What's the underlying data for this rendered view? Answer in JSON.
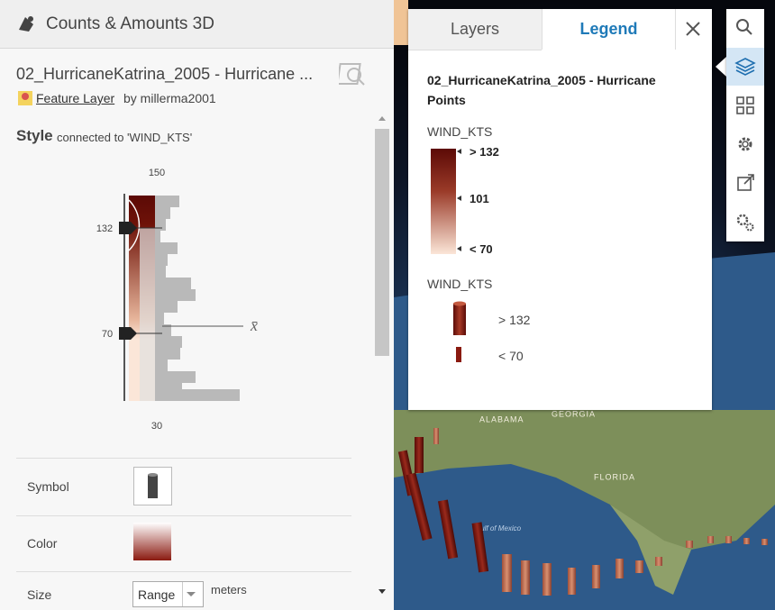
{
  "header": {
    "title": "Counts & Amounts 3D"
  },
  "layer": {
    "name": "02_HurricaneKatrina_2005 - Hurricane ...",
    "type": "Feature Layer",
    "owner": "by millerma2001"
  },
  "style": {
    "label": "Style",
    "field": "connected to 'WIND_KTS'",
    "histogram": {
      "max": "150",
      "upper_handle": "132",
      "lower_handle": "70",
      "min": "30",
      "mean_symbol": "x̄"
    }
  },
  "options": {
    "symbol": "Symbol",
    "color": "Color",
    "size": "Size",
    "size_mode": "Range",
    "size_unit": "meters"
  },
  "tabs": [
    "Layers",
    "Legend"
  ],
  "legend": {
    "title": "02_HurricaneKatrina_2005 - Hurricane Points",
    "color_field": "WIND_KTS",
    "color_labels": [
      "> 132",
      "101",
      "< 70"
    ],
    "size_field": "WIND_KTS",
    "size_labels": [
      "> 132",
      "< 70"
    ]
  },
  "map_labels": [
    "ALABAMA",
    "GEORGIA",
    "FLORIDA",
    "Gulf of Mexico"
  ]
}
